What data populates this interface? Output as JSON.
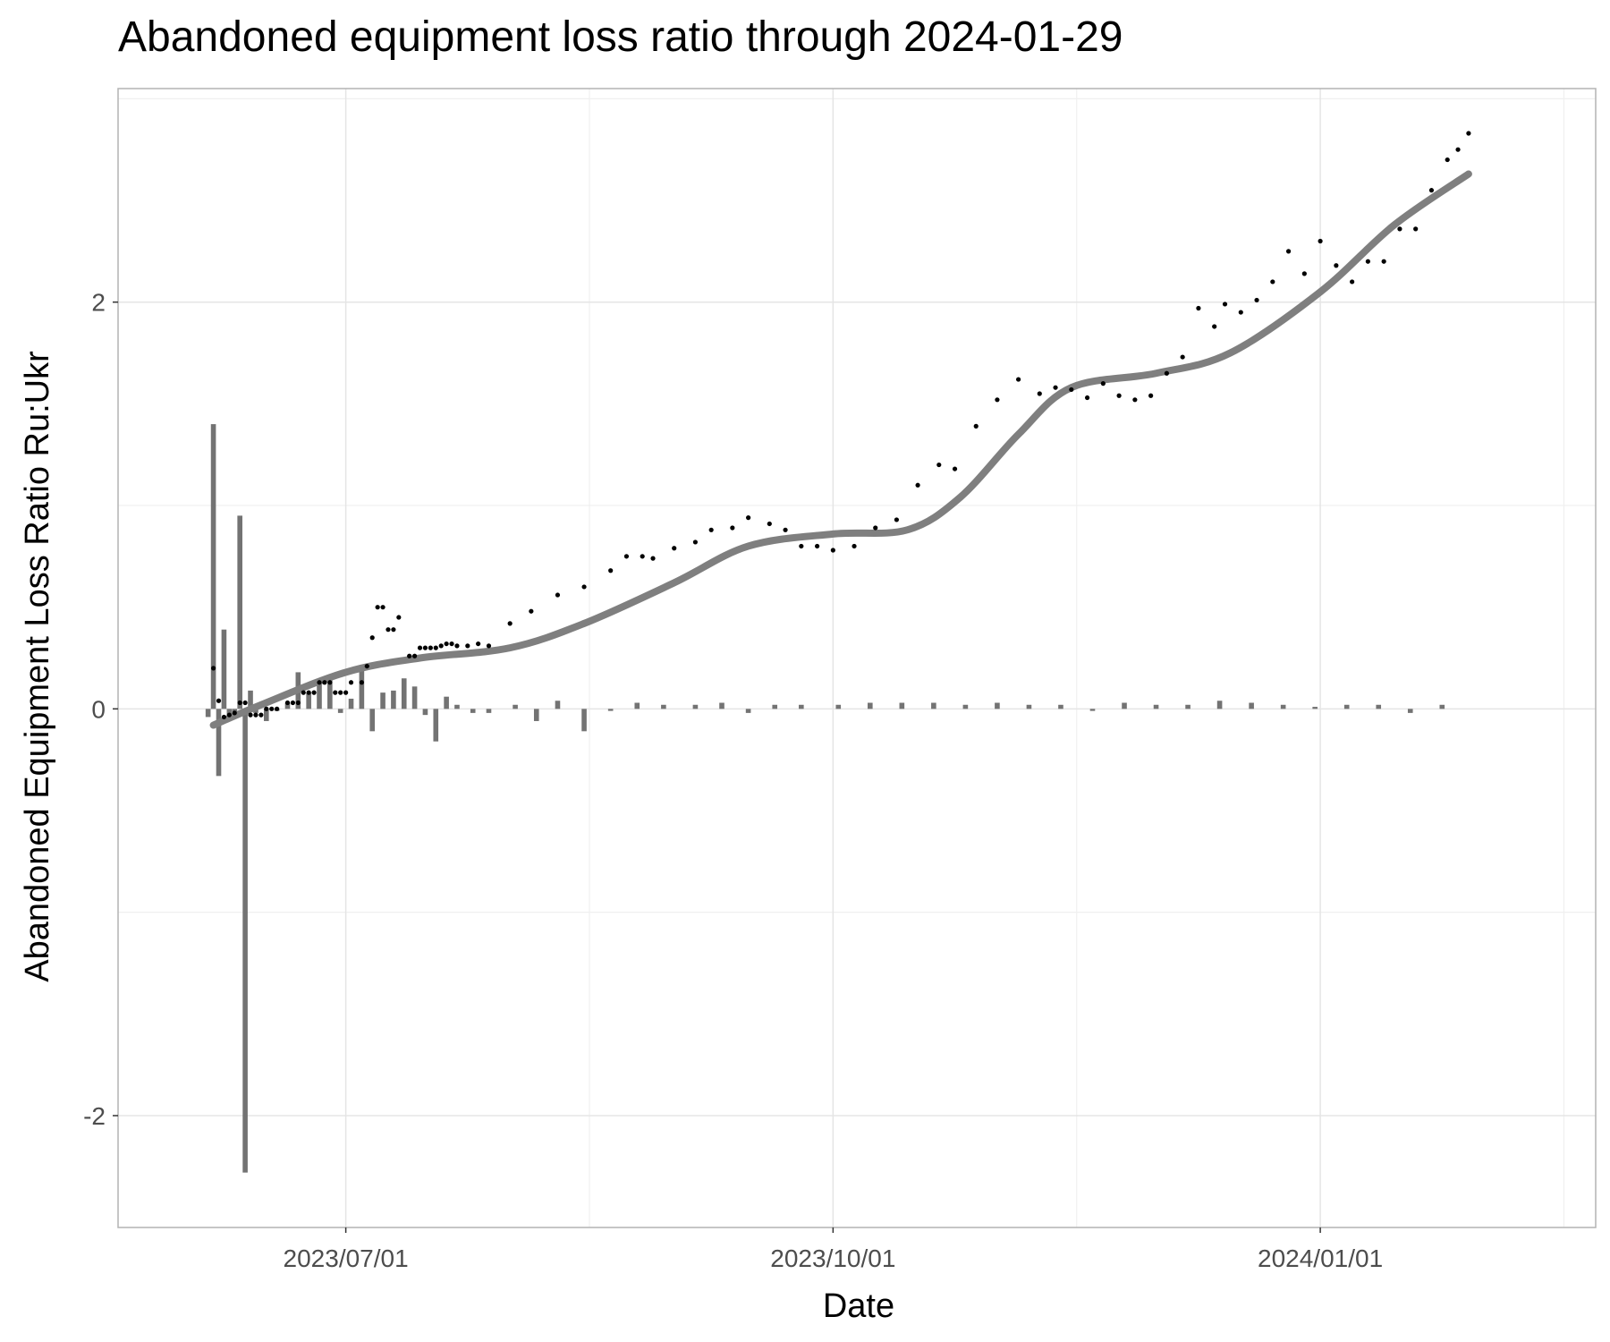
{
  "chart_data": {
    "type": "line",
    "title": "Abandoned equipment loss ratio through 2024-01-29",
    "xlabel": "Date",
    "ylabel": "Abandoned Equipment Loss Ratio Ru:Ukr",
    "x_ticks": [
      "2023/07/01",
      "2023/10/01",
      "2024/01/01"
    ],
    "y_ticks": [
      "-2",
      "0",
      "2"
    ],
    "xlim": [
      "2023-05-19",
      "2024-02-22"
    ],
    "ylim": [
      -2.55,
      3.05
    ],
    "grid": true,
    "legend": "none",
    "colors": {
      "points": "#000000",
      "trend": "#7f7f7f",
      "bars": "#737373",
      "grid": "#e5e5e5",
      "panel_border": "#b3b3b3"
    },
    "series": [
      {
        "type": "scatter",
        "x": [
          "2023-06-06",
          "2023-06-07",
          "2023-06-08",
          "2023-06-09",
          "2023-06-10",
          "2023-06-11",
          "2023-06-12",
          "2023-06-13",
          "2023-06-14",
          "2023-06-15",
          "2023-06-16",
          "2023-06-17",
          "2023-06-18",
          "2023-06-20",
          "2023-06-21",
          "2023-06-22",
          "2023-06-23",
          "2023-06-24",
          "2023-06-25",
          "2023-06-26",
          "2023-06-27",
          "2023-06-28",
          "2023-06-29",
          "2023-06-30",
          "2023-07-01",
          "2023-07-02",
          "2023-07-04",
          "2023-07-05",
          "2023-07-06",
          "2023-07-07",
          "2023-07-08",
          "2023-07-09",
          "2023-07-10",
          "2023-07-11",
          "2023-07-13",
          "2023-07-14",
          "2023-07-15",
          "2023-07-16",
          "2023-07-17",
          "2023-07-18",
          "2023-07-19",
          "2023-07-20",
          "2023-07-21",
          "2023-07-22",
          "2023-07-24",
          "2023-07-26",
          "2023-07-28",
          "2023-08-01",
          "2023-08-05",
          "2023-08-10",
          "2023-08-15",
          "2023-08-20",
          "2023-08-23",
          "2023-08-26",
          "2023-08-28",
          "2023-09-01",
          "2023-09-05",
          "2023-09-08",
          "2023-09-12",
          "2023-09-15",
          "2023-09-19",
          "2023-09-22",
          "2023-09-25",
          "2023-09-28",
          "2023-10-01",
          "2023-10-05",
          "2023-10-09",
          "2023-10-13",
          "2023-10-17",
          "2023-10-21",
          "2023-10-24",
          "2023-10-28",
          "2023-11-01",
          "2023-11-05",
          "2023-11-09",
          "2023-11-12",
          "2023-11-15",
          "2023-11-18",
          "2023-11-21",
          "2023-11-24",
          "2023-11-27",
          "2023-11-30",
          "2023-12-03",
          "2023-12-06",
          "2023-12-09",
          "2023-12-12",
          "2023-12-14",
          "2023-12-17",
          "2023-12-20",
          "2023-12-23",
          "2023-12-26",
          "2023-12-29",
          "2024-01-01",
          "2024-01-04",
          "2024-01-07",
          "2024-01-10",
          "2024-01-13",
          "2024-01-16",
          "2024-01-19",
          "2024-01-22",
          "2024-01-25",
          "2024-01-27",
          "2024-01-29"
        ],
        "y": [
          0.2,
          0.04,
          -0.04,
          -0.03,
          -0.02,
          0.03,
          0.03,
          -0.03,
          -0.03,
          -0.03,
          0.0,
          0.0,
          0.0,
          0.03,
          0.03,
          0.03,
          0.08,
          0.08,
          0.08,
          0.13,
          0.13,
          0.13,
          0.08,
          0.08,
          0.08,
          0.13,
          0.13,
          0.21,
          0.35,
          0.5,
          0.5,
          0.39,
          0.39,
          0.45,
          0.26,
          0.26,
          0.3,
          0.3,
          0.3,
          0.3,
          0.31,
          0.32,
          0.32,
          0.31,
          0.31,
          0.32,
          0.31,
          0.42,
          0.48,
          0.56,
          0.6,
          0.68,
          0.75,
          0.75,
          0.74,
          0.79,
          0.82,
          0.88,
          0.89,
          0.94,
          0.91,
          0.88,
          0.8,
          0.8,
          0.78,
          0.8,
          0.89,
          0.93,
          1.1,
          1.2,
          1.18,
          1.39,
          1.52,
          1.62,
          1.55,
          1.58,
          1.57,
          1.53,
          1.6,
          1.54,
          1.52,
          1.54,
          1.65,
          1.73,
          1.97,
          1.88,
          1.99,
          1.95,
          2.01,
          2.1,
          2.25,
          2.14,
          2.3,
          2.18,
          2.1,
          2.2,
          2.2,
          2.36,
          2.36,
          2.55,
          2.7,
          2.75,
          2.83
        ]
      },
      {
        "type": "line",
        "x": [
          "2023-06-06",
          "2023-06-15",
          "2023-07-01",
          "2023-07-15",
          "2023-08-01",
          "2023-08-15",
          "2023-09-01",
          "2023-09-15",
          "2023-10-01",
          "2023-10-15",
          "2023-10-25",
          "2023-11-05",
          "2023-11-15",
          "2023-12-01",
          "2023-12-15",
          "2024-01-01",
          "2024-01-15",
          "2024-01-29"
        ],
        "y": [
          -0.08,
          0.02,
          0.18,
          0.25,
          0.3,
          0.42,
          0.62,
          0.8,
          0.86,
          0.88,
          1.04,
          1.35,
          1.58,
          1.65,
          1.75,
          2.05,
          2.38,
          2.63
        ]
      },
      {
        "type": "bar",
        "x": [
          "2023-06-05",
          "2023-06-06",
          "2023-06-07",
          "2023-06-08",
          "2023-06-09",
          "2023-06-10",
          "2023-06-11",
          "2023-06-12",
          "2023-06-13",
          "2023-06-14",
          "2023-06-16",
          "2023-06-18",
          "2023-06-20",
          "2023-06-22",
          "2023-06-24",
          "2023-06-26",
          "2023-06-28",
          "2023-06-30",
          "2023-07-02",
          "2023-07-04",
          "2023-07-06",
          "2023-07-08",
          "2023-07-10",
          "2023-07-12",
          "2023-07-14",
          "2023-07-16",
          "2023-07-18",
          "2023-07-20",
          "2023-07-22",
          "2023-07-25",
          "2023-07-28",
          "2023-08-02",
          "2023-08-06",
          "2023-08-10",
          "2023-08-15",
          "2023-08-20",
          "2023-08-25",
          "2023-08-30",
          "2023-09-05",
          "2023-09-10",
          "2023-09-15",
          "2023-09-20",
          "2023-09-25",
          "2023-10-02",
          "2023-10-08",
          "2023-10-14",
          "2023-10-20",
          "2023-10-26",
          "2023-11-01",
          "2023-11-07",
          "2023-11-13",
          "2023-11-19",
          "2023-11-25",
          "2023-12-01",
          "2023-12-07",
          "2023-12-13",
          "2023-12-19",
          "2023-12-25",
          "2023-12-31",
          "2024-01-06",
          "2024-01-12",
          "2024-01-18",
          "2024-01-24"
        ],
        "values": [
          -0.04,
          1.4,
          -0.33,
          0.39,
          -0.04,
          -0.02,
          0.95,
          -2.28,
          0.09,
          -0.02,
          -0.06,
          -0.01,
          0.03,
          0.18,
          0.08,
          0.14,
          0.16,
          -0.02,
          0.05,
          0.19,
          -0.11,
          0.08,
          0.09,
          0.15,
          0.11,
          -0.03,
          -0.16,
          0.06,
          0.02,
          -0.02,
          -0.02,
          0.02,
          -0.06,
          0.04,
          -0.11,
          -0.01,
          0.03,
          0.02,
          0.02,
          0.03,
          -0.02,
          0.02,
          0.02,
          0.02,
          0.03,
          0.03,
          0.03,
          0.02,
          0.03,
          0.02,
          0.02,
          -0.01,
          0.03,
          0.02,
          0.02,
          0.04,
          0.03,
          0.02,
          0.01,
          0.02,
          0.02,
          -0.02,
          0.02
        ]
      }
    ]
  }
}
